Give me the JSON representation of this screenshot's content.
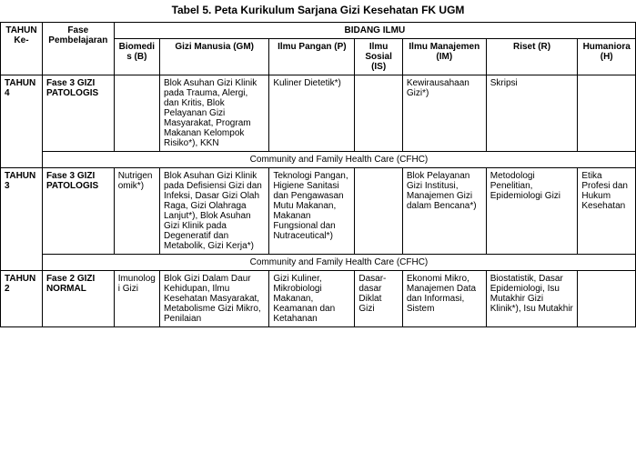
{
  "title": "Tabel 5. Peta Kurikulum Sarjana Gizi Kesehatan FK UGM",
  "headers": {
    "tahun": "TAHUN Ke-",
    "fase": "Fase Pembelajaran",
    "bidang": "BIDANG ILMU",
    "b": "Biomedis (B)",
    "gm": "Gizi Manusia (GM)",
    "p": "Ilmu Pangan (P)",
    "is": "Ilmu Sosial (IS)",
    "im": "Ilmu Manajemen (IM)",
    "r": "Riset (R)",
    "h": "Humaniora (H)"
  },
  "rows": {
    "t4": {
      "tahun": "TAHUN 4",
      "fase": "Fase 3 GIZI PATOLOGIS",
      "b": "",
      "gm": "Blok Asuhan Gizi Klinik pada Trauma, Alergi, dan Kritis, Blok Pelayanan Gizi Masyarakat, Program Makanan Kelompok Risiko*), KKN",
      "p": "Kuliner Dietetik*)",
      "is": "",
      "im": "Kewirausahaan Gizi*)",
      "r": "Skripsi",
      "h": ""
    },
    "cfhc1": "Community and Family Health Care (CFHC)",
    "t3": {
      "tahun": "TAHUN 3",
      "fase": "Fase 3 GIZI PATOLOGIS",
      "b": "Nutrigenomik*)",
      "gm": "Blok Asuhan Gizi Klinik pada Defisiensi Gizi dan Infeksi, Dasar Gizi Olah Raga, Gizi Olahraga Lanjut*), Blok Asuhan Gizi Klinik pada Degeneratif dan Metabolik, Gizi Kerja*)",
      "p": "Teknologi Pangan, Higiene Sanitasi dan Pengawasan Mutu Makanan, Makanan Fungsional dan Nutraceutical*)",
      "is": "",
      "im": "Blok Pelayanan Gizi Institusi, Manajemen Gizi dalam Bencana*)",
      "r": "Metodologi Penelitian, Epidemiologi Gizi",
      "h": "Etika Profesi dan Hukum Kesehatan"
    },
    "cfhc2": "Community and Family Health Care (CFHC)",
    "t2": {
      "tahun": "TAHUN 2",
      "fase": "Fase 2 GIZI NORMAL",
      "b": "Imunologi Gizi",
      "gm": "Blok Gizi Dalam Daur Kehidupan, Ilmu Kesehatan Masyarakat, Metabolisme Gizi Mikro, Penilaian",
      "p": "Gizi Kuliner, Mikrobiologi Makanan, Keamanan dan Ketahanan",
      "is": "Dasar-dasar Diklat Gizi",
      "im": "Ekonomi Mikro, Manajemen Data dan Informasi, Sistem",
      "r": "Biostatistik, Dasar Epidemiologi, Isu Mutakhir Gizi Klinik*), Isu Mutakhir",
      "h": ""
    }
  }
}
